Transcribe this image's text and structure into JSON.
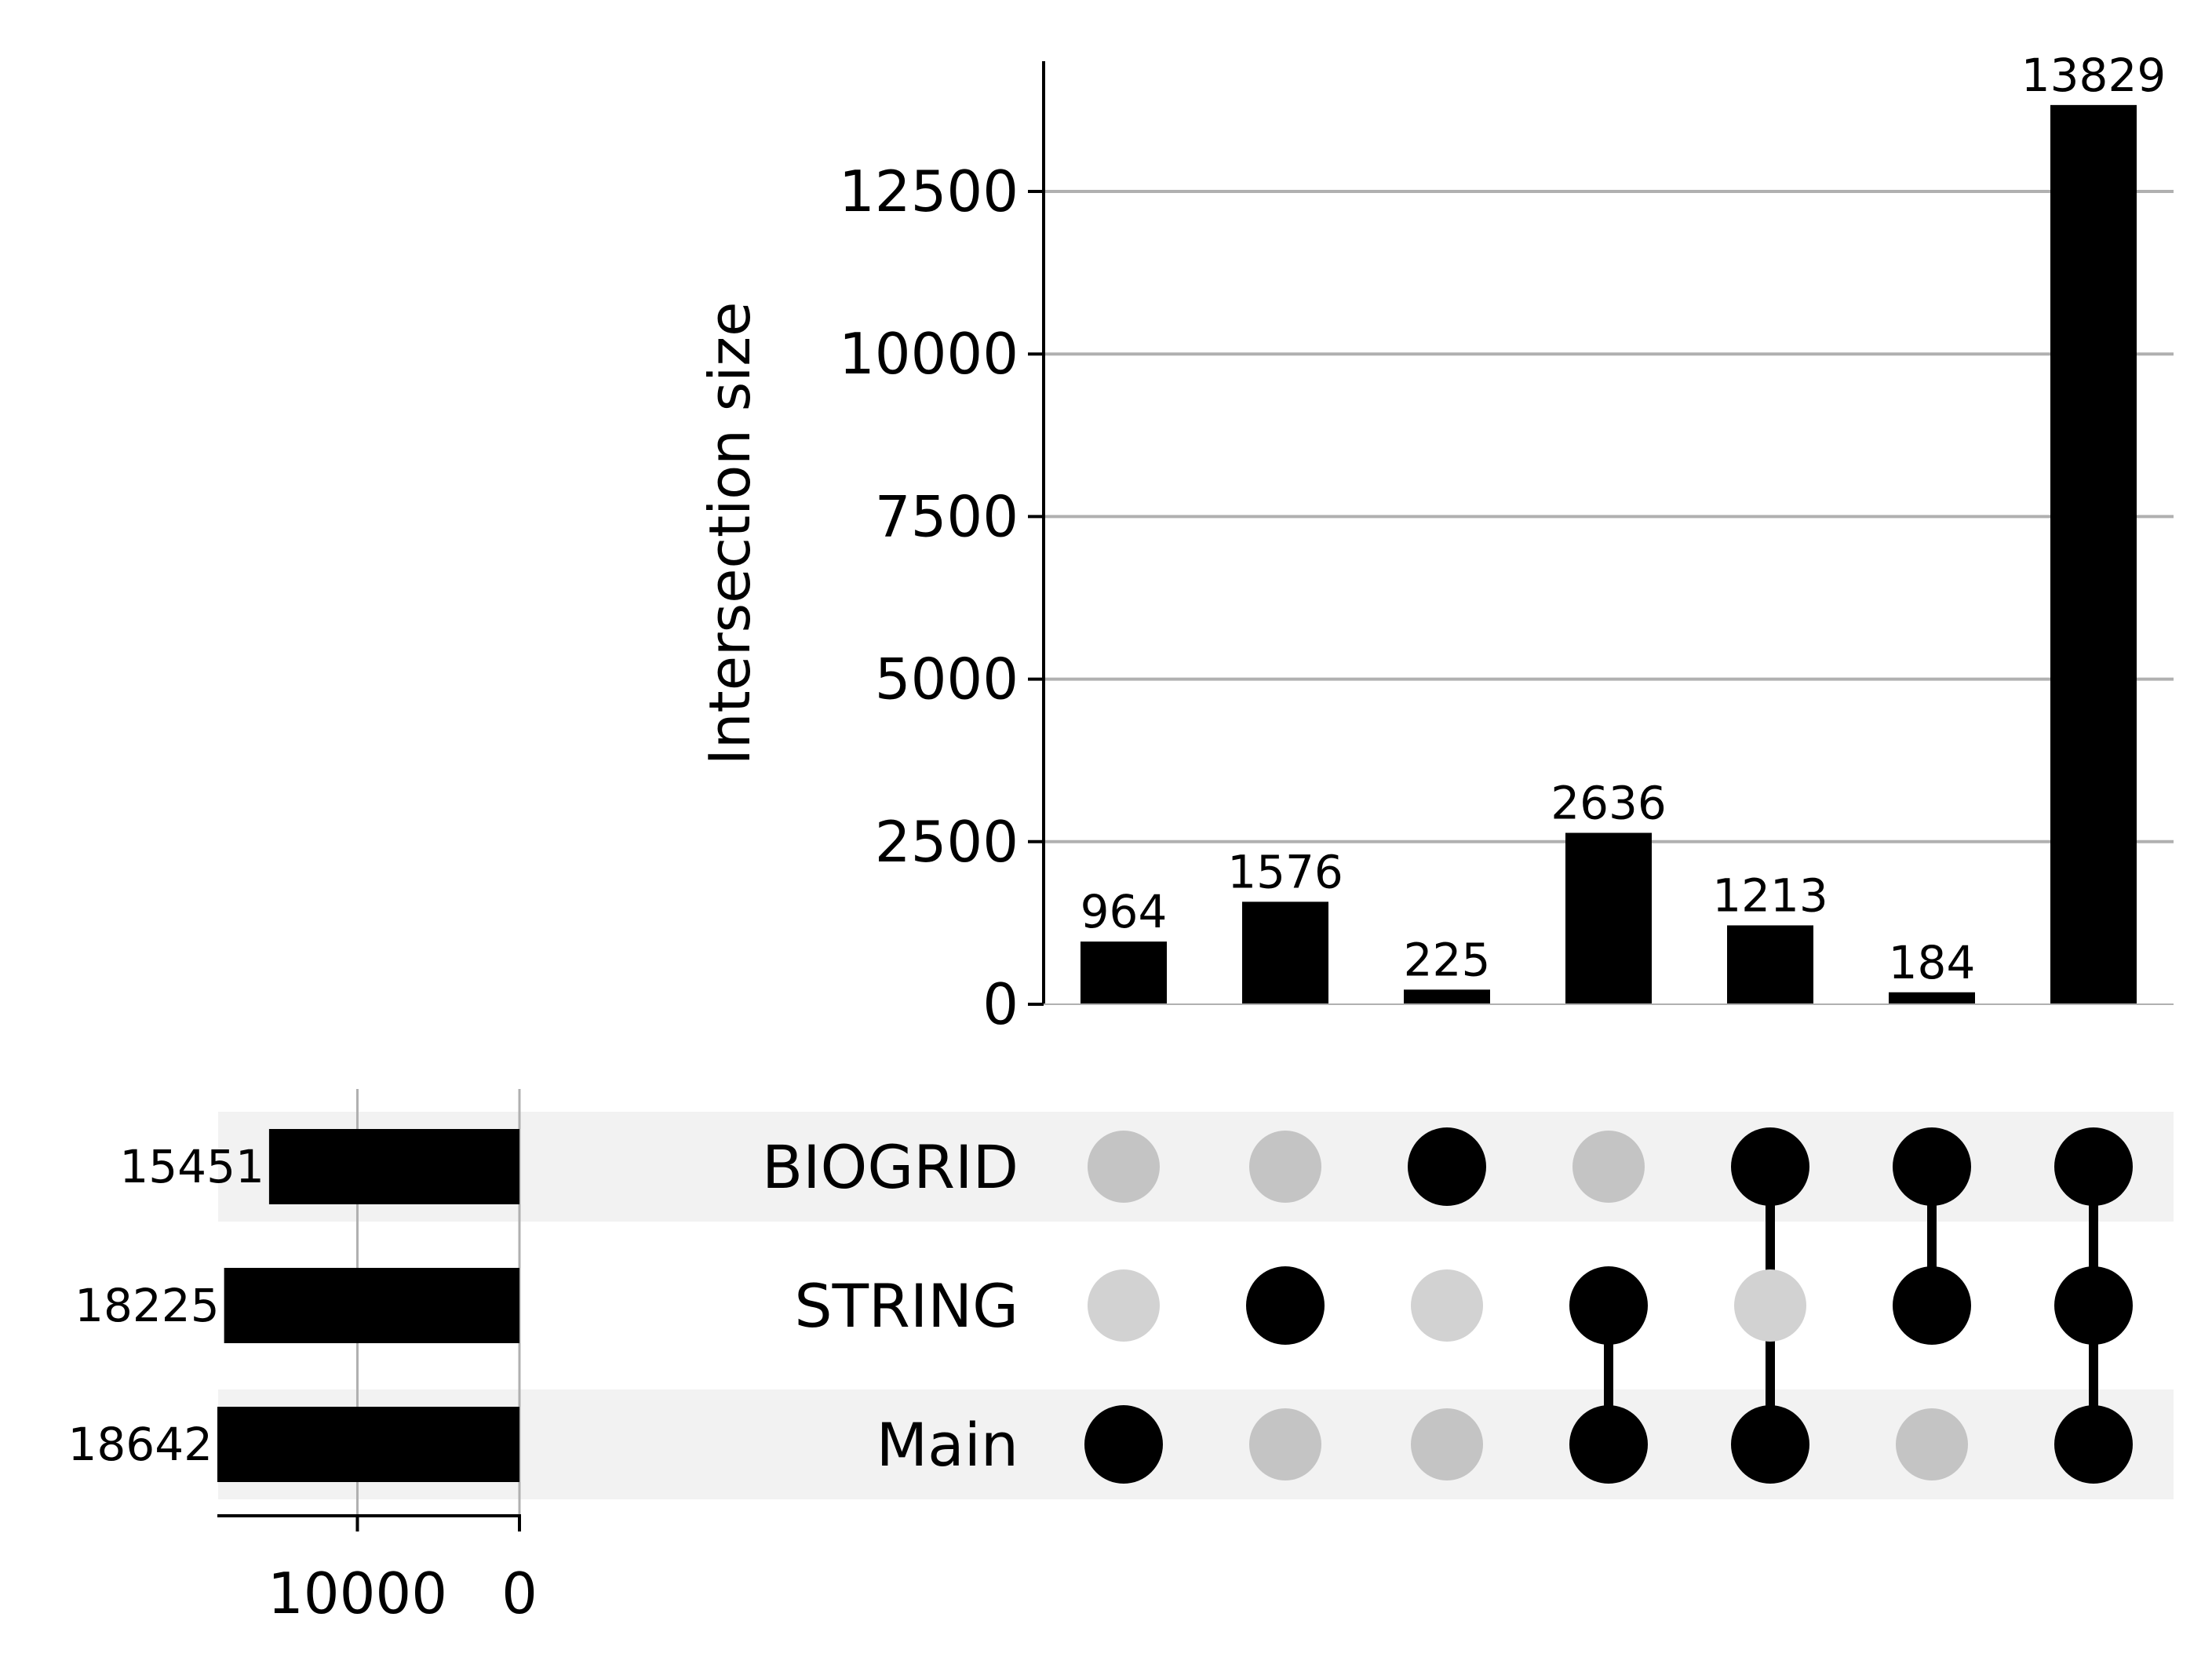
{
  "chart_data": [
    {
      "type": "bar",
      "role": "intersection_sizes",
      "ylabel": "Intersection size",
      "ylim": [
        0,
        14500
      ],
      "yticks": [
        0,
        2500,
        5000,
        7500,
        10000,
        12500
      ],
      "grid": true,
      "values": [
        964,
        1576,
        225,
        2636,
        1213,
        184,
        13829
      ],
      "value_labels": [
        "964",
        "1576",
        "225",
        "2636",
        "1213",
        "184",
        "13829"
      ]
    },
    {
      "type": "bar",
      "role": "set_sizes",
      "orientation": "horizontal",
      "xaxis_inverted": true,
      "categories": [
        "BIOGRID",
        "STRING",
        "Main"
      ],
      "values": [
        15451,
        18225,
        18642
      ],
      "value_labels": [
        "15451",
        "18225",
        "18642"
      ],
      "xlim": [
        0,
        18642
      ],
      "xticks": [
        10000,
        0
      ],
      "grid": true
    },
    {
      "type": "table",
      "role": "membership_matrix",
      "rows": [
        "BIOGRID",
        "STRING",
        "Main"
      ],
      "columns": [
        [
          false,
          false,
          true
        ],
        [
          false,
          true,
          false
        ],
        [
          true,
          false,
          false
        ],
        [
          false,
          true,
          true
        ],
        [
          true,
          false,
          true
        ],
        [
          true,
          true,
          false
        ],
        [
          true,
          true,
          true
        ]
      ]
    }
  ],
  "colors": {
    "bar": "#000000",
    "grid": "#b0b0b0",
    "dot_active": "#000000",
    "dot_inactive": "#c4c4c4",
    "row_shade": "#f2f2f2"
  }
}
